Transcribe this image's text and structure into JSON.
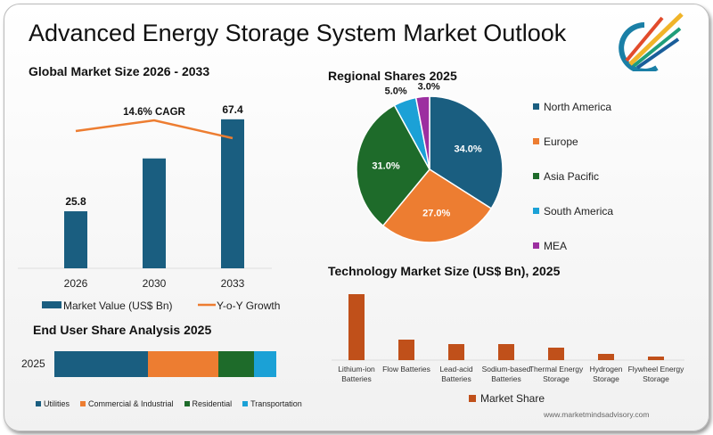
{
  "title": "Advanced Energy Storage System Market Outlook",
  "website": "www.marketmindsadvisory.com",
  "chart_data": [
    {
      "type": "bar",
      "title": "Global Market Size 2026 - 2033",
      "categories": [
        "2026",
        "2030",
        "2033"
      ],
      "series": [
        {
          "name": "Market Value (US$ Bn)",
          "values": [
            25.8,
            49.7,
            67.4
          ],
          "data_labels": [
            "25.8",
            "",
            "67.4"
          ],
          "color": "#1a5e80"
        },
        {
          "name": "Y-o-Y Growth",
          "type": "line",
          "values": [
            14.3,
            14.9,
            13.9
          ],
          "color": "#ed7d31"
        }
      ],
      "annotation": "14.6% CAGR",
      "ylim": [
        0,
        70
      ]
    },
    {
      "type": "pie",
      "title": "Regional Shares 2025",
      "slices": [
        {
          "label": "North America",
          "value": 34.0,
          "text": "34.0%",
          "color": "#1a5e80"
        },
        {
          "label": "Europe",
          "value": 27.0,
          "text": "27.0%",
          "color": "#ed7d31"
        },
        {
          "label": "Asia Pacific",
          "value": 31.0,
          "text": "31.0%",
          "color": "#1e6b2a"
        },
        {
          "label": "South America",
          "value": 5.0,
          "text": "5.0%",
          "color": "#1ba1d6"
        },
        {
          "label": "MEA",
          "value": 3.0,
          "text": "3.0%",
          "color": "#9c2fa0"
        }
      ]
    },
    {
      "type": "bar",
      "orientation": "horizontal-stacked",
      "title": "End User Share Analysis 2025",
      "categories": [
        "2025"
      ],
      "series": [
        {
          "name": "Utilities",
          "values": [
            42
          ],
          "color": "#1a5e80"
        },
        {
          "name": "Commercial & Industrial",
          "values": [
            32
          ],
          "color": "#ed7d31"
        },
        {
          "name": "Residential",
          "values": [
            16
          ],
          "color": "#1e6b2a"
        },
        {
          "name": "Transportation",
          "values": [
            10
          ],
          "color": "#1ba1d6"
        }
      ]
    },
    {
      "type": "bar",
      "title": "Technology Market Size (US$ Bn), 2025",
      "categories": [
        "Lithium-ion Batteries",
        "Flow Batteries",
        "Lead-acid Batteries",
        "Sodium-based Batteries",
        "Thermal Energy Storage",
        "Hydrogen Storage",
        "Flywheel Energy Storage"
      ],
      "series": [
        {
          "name": "Market Share",
          "values": [
            74,
            23,
            18,
            18,
            14,
            7,
            4
          ],
          "color": "#c0501a"
        }
      ]
    }
  ]
}
